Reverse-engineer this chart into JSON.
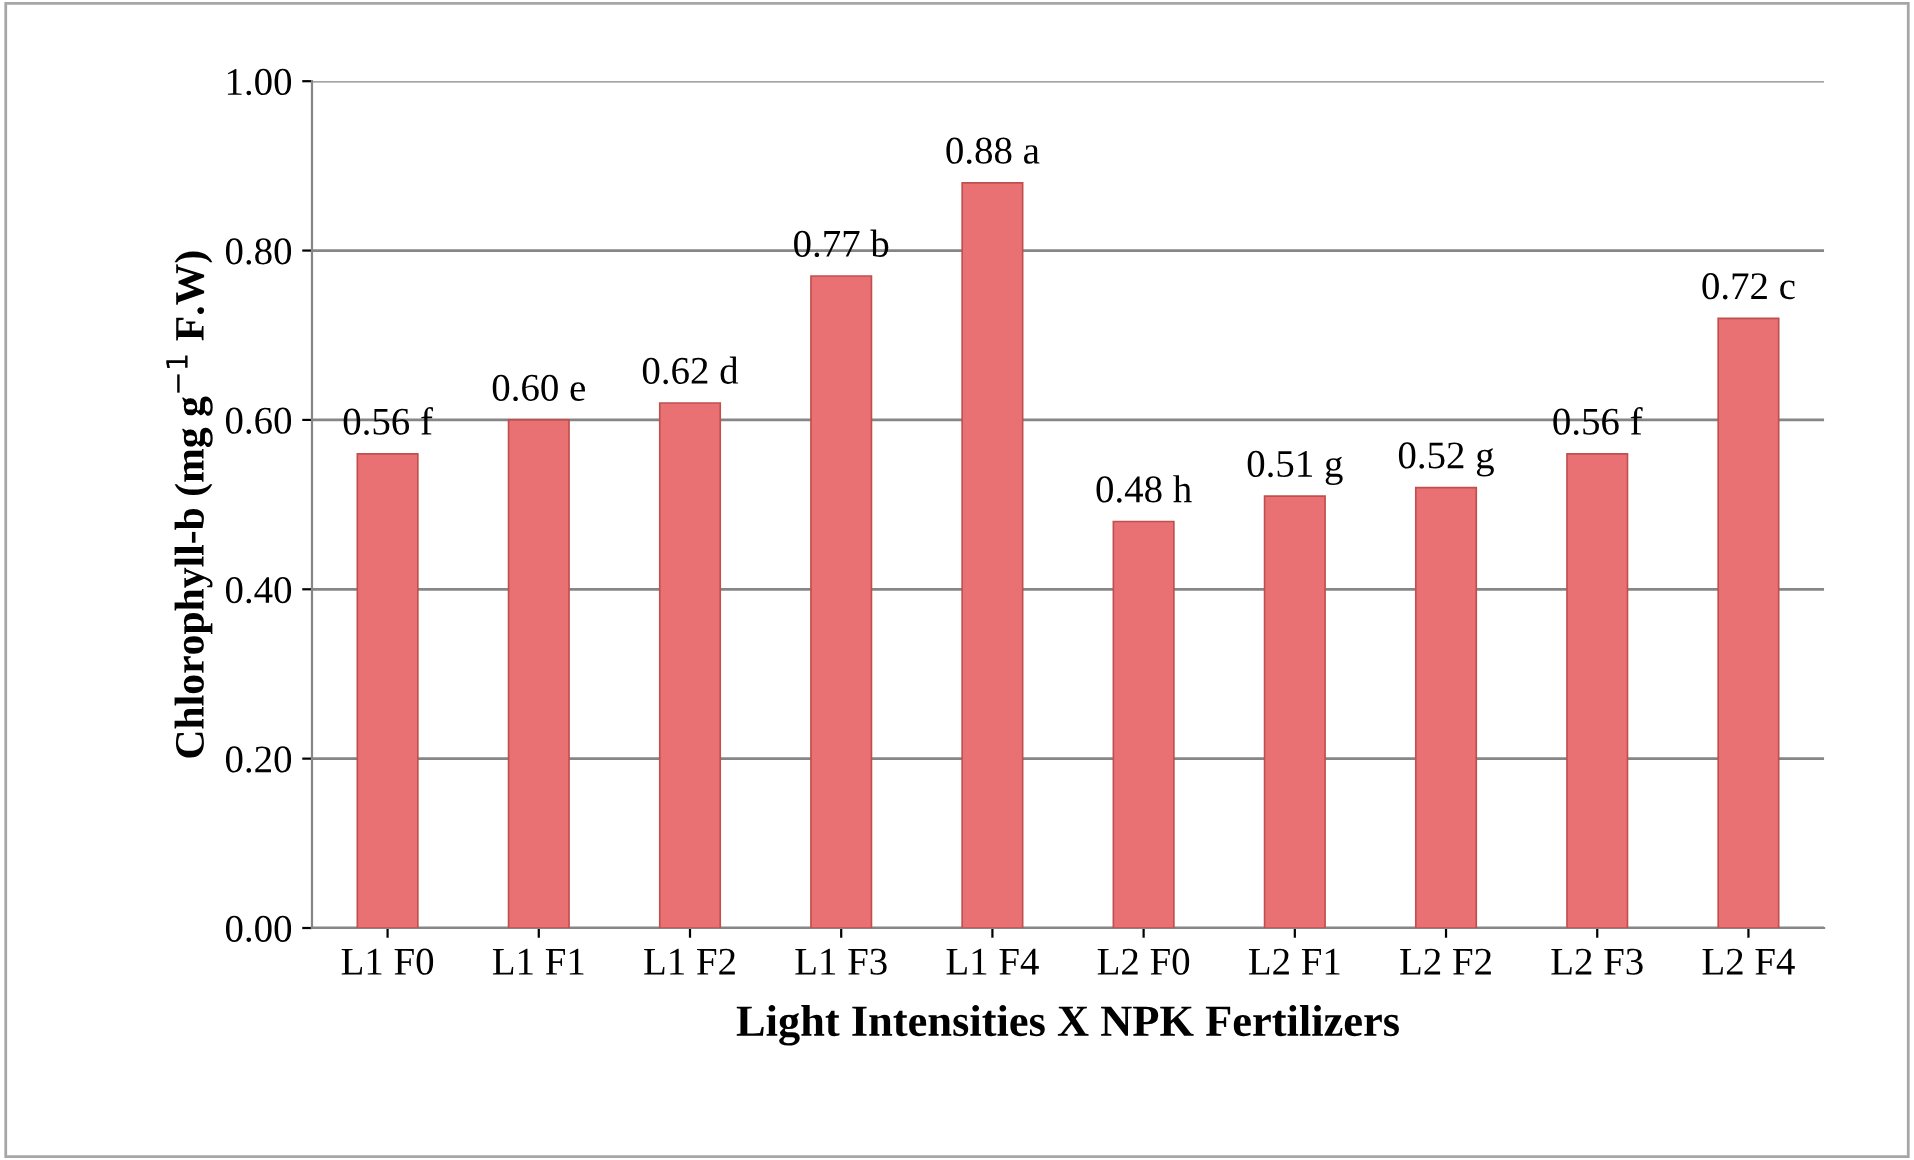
{
  "chart_data": {
    "type": "bar",
    "xlabel": "Light Intensities X NPK Fertilizers",
    "ylabel": "Chlorophyll-b (mg g$^{−1}$ F.W)",
    "categories": [
      "L1 F0",
      "L1 F1",
      "L1 F2",
      "L1 F3",
      "L1 F4",
      "L2 F0",
      "L2 F1",
      "L2 F2",
      "L2 F3",
      "L2 F4"
    ],
    "values": [
      0.56,
      0.6,
      0.62,
      0.77,
      0.88,
      0.48,
      0.51,
      0.52,
      0.56,
      0.72
    ],
    "value_labels": [
      "0.56 f",
      "0.60 e",
      "0.62 d",
      "0.77 b",
      "0.88 a",
      "0.48 h",
      "0.51 g",
      "0.52 g",
      "0.56 f",
      "0.72 c"
    ],
    "color": "#e97173",
    "ylim": [
      0,
      1
    ],
    "yticks": [
      {
        "value": 0,
        "label": "0.00"
      },
      {
        "value": 0.2,
        "label": "0.20"
      },
      {
        "value": 0.4,
        "label": "0.40"
      },
      {
        "value": 0.6,
        "label": "0.60"
      },
      {
        "value": 0.8,
        "label": "0.80"
      },
      {
        "value": 1,
        "label": "1.00"
      }
    ],
    "grid": "y",
    "legend": false
  }
}
